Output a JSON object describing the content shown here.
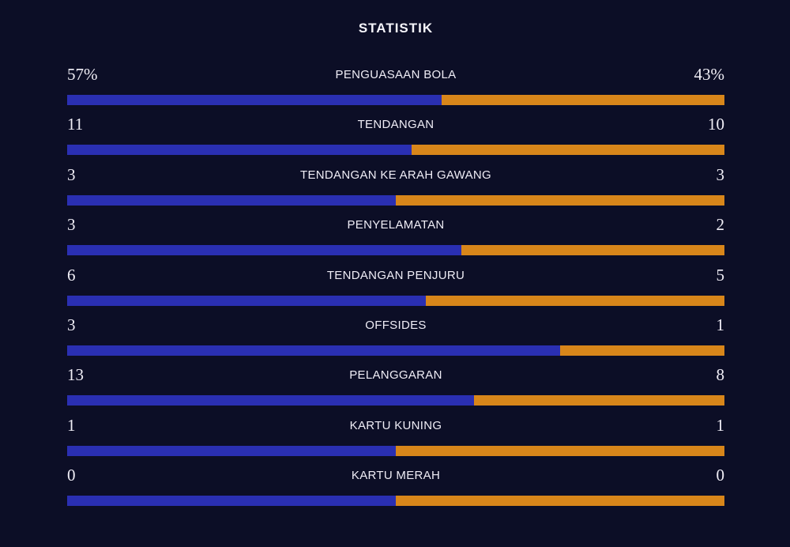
{
  "title": "STATISTIK",
  "colors": {
    "background": "#0c0e26",
    "home_bar": "#2a2fb2",
    "away_bar": "#d8861a",
    "text": "#f1eff7"
  },
  "chart_data": {
    "type": "bar",
    "subtype": "horizontal-stacked-comparison",
    "title": "STATISTIK",
    "legend_position": "none",
    "grid": false,
    "series": [
      {
        "name": "home",
        "color": "#2a2fb2"
      },
      {
        "name": "away",
        "color": "#d8861a"
      }
    ],
    "rows": [
      {
        "label": "PENGUASAAN BOLA",
        "home_display": "57%",
        "away_display": "43%",
        "home": 57,
        "away": 43
      },
      {
        "label": "TENDANGAN",
        "home_display": "11",
        "away_display": "10",
        "home": 11,
        "away": 10
      },
      {
        "label": "TENDANGAN KE ARAH GAWANG",
        "home_display": "3",
        "away_display": "3",
        "home": 3,
        "away": 3
      },
      {
        "label": "PENYELAMATAN",
        "home_display": "3",
        "away_display": "2",
        "home": 3,
        "away": 2
      },
      {
        "label": "TENDANGAN PENJURU",
        "home_display": "6",
        "away_display": "5",
        "home": 6,
        "away": 5
      },
      {
        "label": "OFFSIDES",
        "home_display": "3",
        "away_display": "1",
        "home": 3,
        "away": 1
      },
      {
        "label": "PELANGGARAN",
        "home_display": "13",
        "away_display": "8",
        "home": 13,
        "away": 8
      },
      {
        "label": "KARTU KUNING",
        "home_display": "1",
        "away_display": "1",
        "home": 1,
        "away": 1
      },
      {
        "label": "KARTU MERAH",
        "home_display": "0",
        "away_display": "0",
        "home": 0,
        "away": 0
      }
    ]
  }
}
